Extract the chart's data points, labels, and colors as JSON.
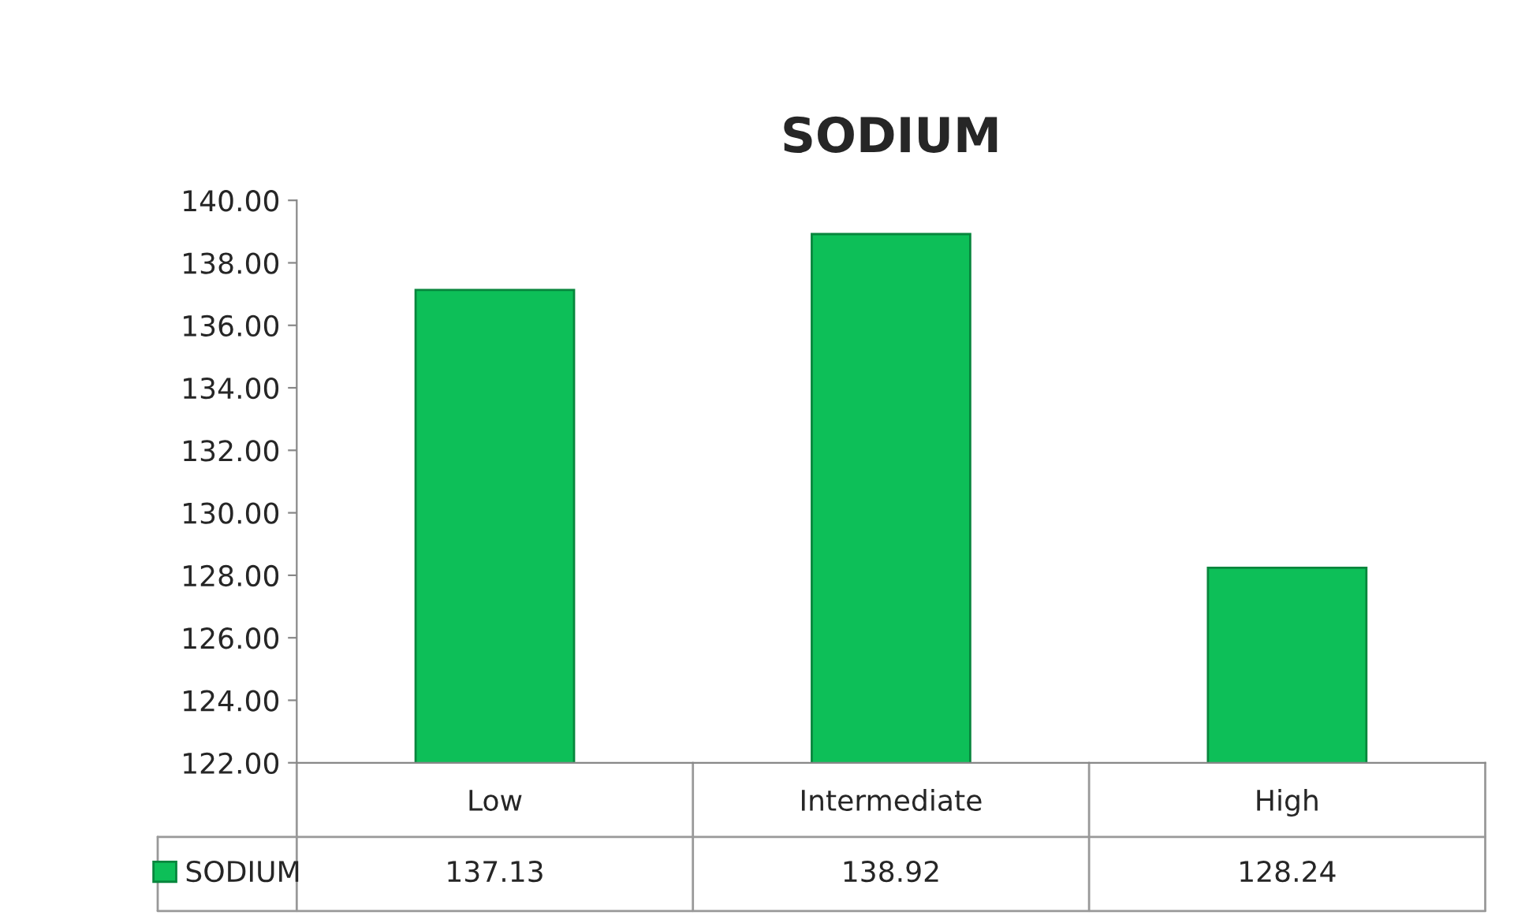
{
  "chart_data": {
    "type": "bar",
    "title": "SODIUM",
    "categories": [
      "Low",
      "Intermediate",
      "High"
    ],
    "series": [
      {
        "name": "SODIUM",
        "color": "#0dbf58",
        "values": [
          137.13,
          138.92,
          128.24
        ]
      }
    ],
    "ylim": [
      122,
      140
    ],
    "yticks": [
      {
        "value": 122,
        "label": "122.00"
      },
      {
        "value": 124,
        "label": "124.00"
      },
      {
        "value": 126,
        "label": "126.00"
      },
      {
        "value": 128,
        "label": "128.00"
      },
      {
        "value": 130,
        "label": "130.00"
      },
      {
        "value": 132,
        "label": "132.00"
      },
      {
        "value": 134,
        "label": "134.00"
      },
      {
        "value": 136,
        "label": "136.00"
      },
      {
        "value": 138,
        "label": "138.00"
      },
      {
        "value": 140,
        "label": "140.00"
      }
    ],
    "data_labels": true,
    "grid": false,
    "legend": "bottom left"
  }
}
